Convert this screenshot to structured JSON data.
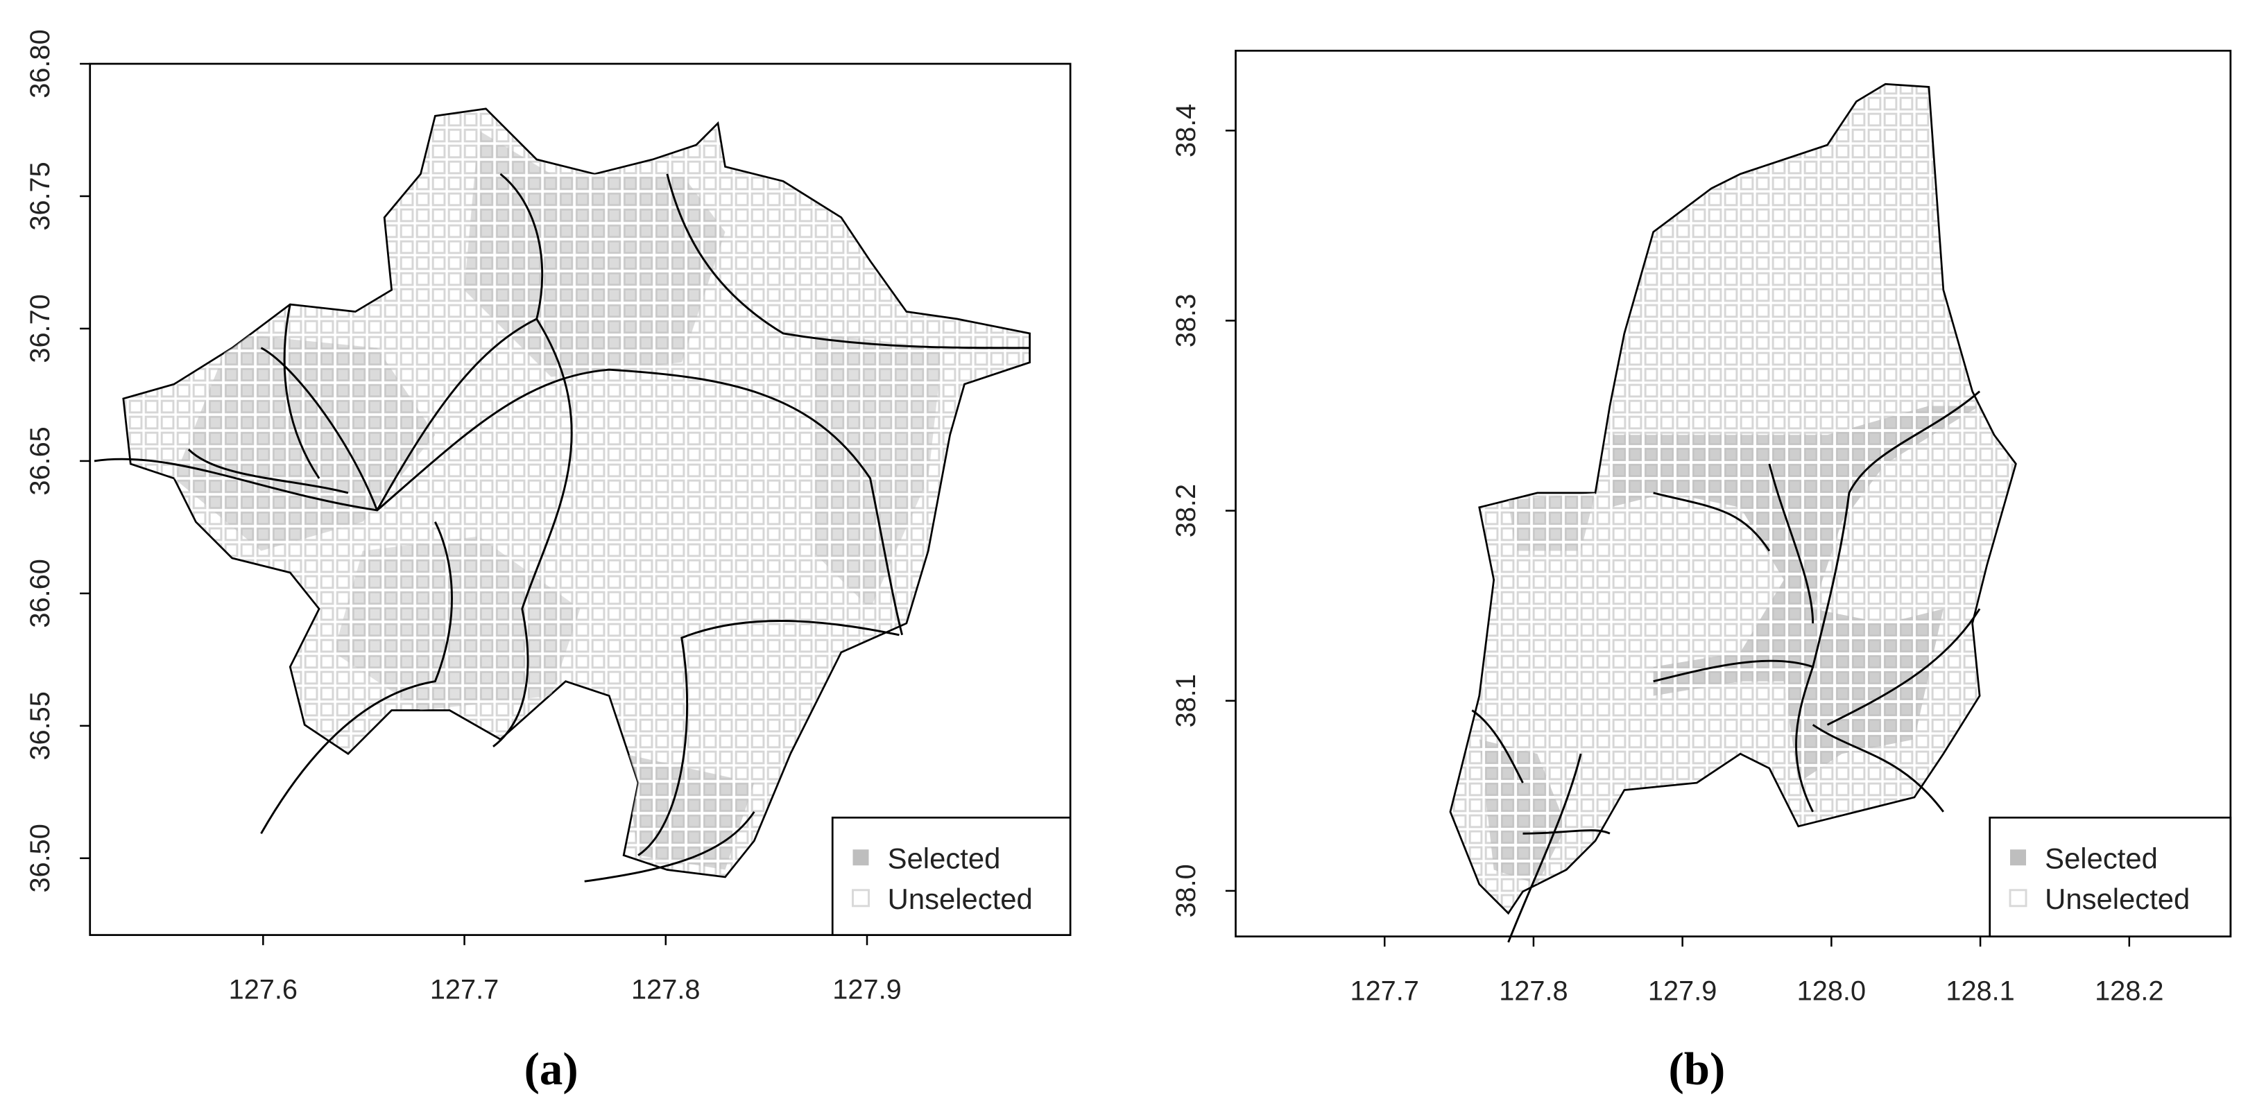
{
  "panels": [
    {
      "label": "(a)",
      "xlim": [
        127.514,
        128.001
      ],
      "ylim": [
        36.471,
        36.8
      ],
      "xticks": [
        127.6,
        127.7,
        127.8,
        127.9
      ],
      "yticks": [
        {
          "value": 36.5,
          "label": "36.50"
        },
        36.55,
        {
          "value": 36.6,
          "label": "36.60"
        },
        36.65,
        {
          "value": 36.7,
          "label": "36.70"
        },
        36.75,
        {
          "value": 36.8,
          "label": "36.80"
        }
      ],
      "legend": [
        {
          "name": "Selected",
          "color": "#bebebe"
        },
        {
          "name": "Unselected",
          "color": "#d9d9d9"
        }
      ]
    },
    {
      "label": "(b)",
      "xlim": [
        127.6,
        128.268
      ],
      "ylim": [
        37.976,
        38.442
      ],
      "xticks": [
        127.7,
        127.8,
        127.9,
        {
          "value": 128,
          "label": "128.0"
        },
        128.1,
        128.2
      ],
      "yticks": [
        {
          "value": 38,
          "label": "38.0"
        },
        38.1,
        38.2,
        38.3,
        38.4
      ],
      "legend": [
        {
          "name": "Selected",
          "color": "#bebebe"
        },
        {
          "name": "Unselected",
          "color": "#d9d9d9"
        }
      ]
    }
  ]
}
